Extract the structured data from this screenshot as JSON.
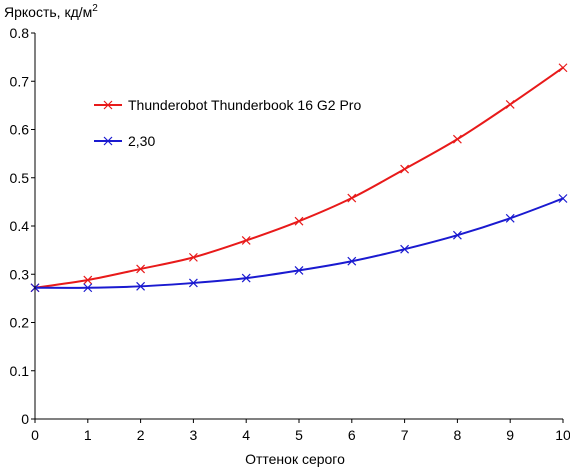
{
  "chart_data": {
    "type": "line",
    "ylabel": "Яркость, кд/м",
    "ylabel_superscript": "2",
    "xlabel": "Оттенок серого",
    "xlim": [
      0,
      10
    ],
    "ylim": [
      0,
      0.8
    ],
    "x": [
      0,
      1,
      2,
      3,
      4,
      5,
      6,
      7,
      8,
      9,
      10
    ],
    "xticks": [
      "0",
      "1",
      "2",
      "3",
      "4",
      "5",
      "6",
      "7",
      "8",
      "9",
      "10"
    ],
    "yticks": [
      {
        "value": 0,
        "label": "0"
      },
      {
        "value": 0.1,
        "label": "0.1"
      },
      {
        "value": 0.2,
        "label": "0.2"
      },
      {
        "value": 0.3,
        "label": "0.3"
      },
      {
        "value": 0.4,
        "label": "0.4"
      },
      {
        "value": 0.5,
        "label": "0.5"
      },
      {
        "value": 0.6,
        "label": "0.6"
      },
      {
        "value": 0.7,
        "label": "0.7"
      },
      {
        "value": 0.8,
        "label": "0.8"
      }
    ],
    "grid": false,
    "legend_position": "upper-left",
    "series": [
      {
        "name": "Thunderobot Thunderbook 16 G2 Pro",
        "color": "#e81a1a",
        "marker": "x",
        "values": [
          0.272,
          0.288,
          0.311,
          0.335,
          0.37,
          0.41,
          0.458,
          0.518,
          0.58,
          0.652,
          0.728
        ]
      },
      {
        "name": "2,30",
        "color": "#1a1ad0",
        "marker": "x",
        "values": [
          0.272,
          0.272,
          0.275,
          0.282,
          0.292,
          0.308,
          0.327,
          0.352,
          0.381,
          0.416,
          0.457
        ]
      }
    ]
  }
}
